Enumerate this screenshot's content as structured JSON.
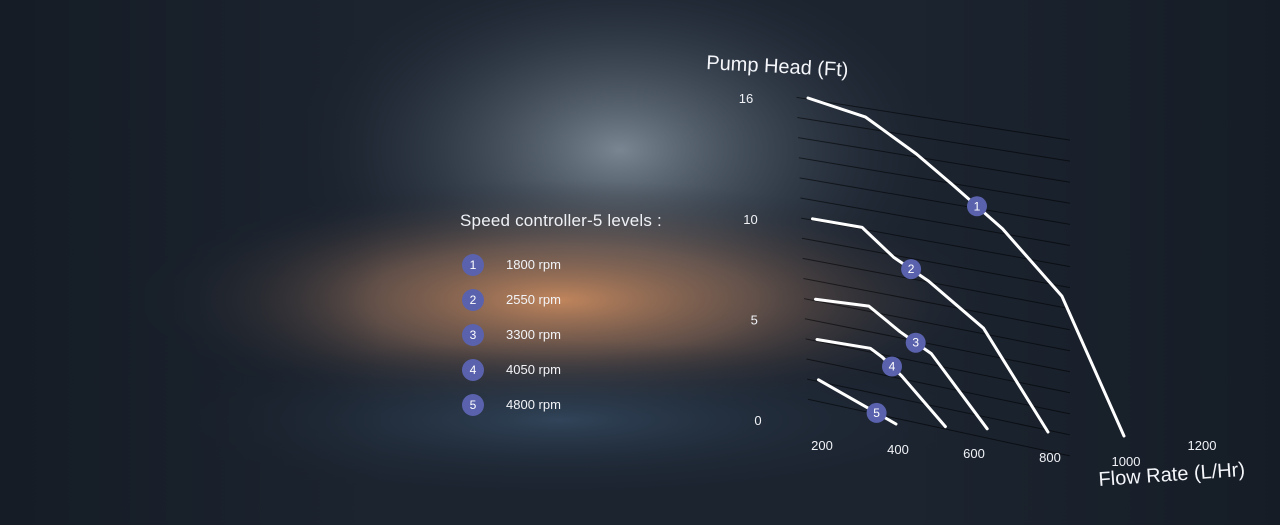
{
  "legend": {
    "title": "Speed controller-5 levels :",
    "items": [
      {
        "id": "1",
        "label": "1800 rpm"
      },
      {
        "id": "2",
        "label": "2550 rpm"
      },
      {
        "id": "3",
        "label": "3300 rpm"
      },
      {
        "id": "4",
        "label": "4050 rpm"
      },
      {
        "id": "5",
        "label": "4800 rpm"
      }
    ]
  },
  "chart_data": {
    "type": "line",
    "title": "",
    "ylabel": "Pump Head (Ft)",
    "xlabel": "Flow Rate (L/Hr)",
    "x_ticks": [
      "200",
      "400",
      "600",
      "800",
      "1000",
      "1200"
    ],
    "y_ticks": [
      "0",
      "5",
      "10",
      "16"
    ],
    "xlim": [
      200,
      1200
    ],
    "ylim": [
      0,
      16
    ],
    "grid": true,
    "colors": {
      "line": "#ffffff",
      "marker": "#5a62ad",
      "grid": "#000000"
    },
    "series": [
      {
        "name": "1",
        "points": [
          [
            200,
            16
          ],
          [
            350,
            15.2
          ],
          [
            480,
            13.5
          ],
          [
            570,
            12.1
          ],
          [
            700,
            10
          ],
          [
            850,
            6.8
          ],
          [
            1000,
            0
          ]
        ]
      },
      {
        "name": "2",
        "points": [
          [
            200,
            10
          ],
          [
            330,
            9.7
          ],
          [
            410,
            8.3
          ],
          [
            500,
            7.2
          ],
          [
            640,
            5
          ],
          [
            800,
            0
          ]
        ]
      },
      {
        "name": "3",
        "points": [
          [
            200,
            6
          ],
          [
            340,
            5.8
          ],
          [
            420,
            4.6
          ],
          [
            500,
            3.6
          ],
          [
            640,
            0
          ]
        ]
      },
      {
        "name": "4",
        "points": [
          [
            200,
            4
          ],
          [
            340,
            3.7
          ],
          [
            370,
            3.3
          ],
          [
            420,
            2.4
          ],
          [
            530,
            0
          ]
        ]
      },
      {
        "name": "5",
        "points": [
          [
            200,
            2
          ],
          [
            300,
            1
          ],
          [
            400,
            0
          ]
        ]
      }
    ]
  }
}
